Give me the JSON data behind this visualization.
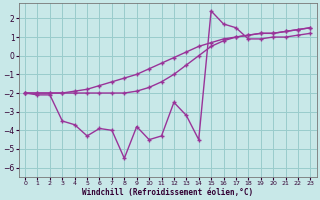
{
  "xlabel": "Windchill (Refroidissement éolien,°C)",
  "x_values": [
    0,
    1,
    2,
    3,
    4,
    5,
    6,
    7,
    8,
    9,
    10,
    11,
    12,
    13,
    14,
    15,
    16,
    17,
    18,
    19,
    20,
    21,
    22,
    23
  ],
  "line_zigzag": [
    -2.0,
    -2.1,
    -2.1,
    -3.5,
    -3.7,
    -4.3,
    -3.9,
    -4.0,
    -5.5,
    -3.8,
    -4.5,
    -4.3,
    -2.5,
    -3.2,
    -4.5,
    2.4,
    1.7,
    1.5,
    0.9,
    0.9,
    1.0,
    1.0,
    1.1,
    1.2
  ],
  "line_upper": [
    -2.0,
    -2.0,
    -2.0,
    -2.0,
    -1.9,
    -1.8,
    -1.6,
    -1.4,
    -1.2,
    -1.0,
    -0.7,
    -0.4,
    -0.1,
    0.2,
    0.5,
    0.7,
    0.9,
    1.0,
    1.1,
    1.2,
    1.2,
    1.3,
    1.4,
    1.5
  ],
  "line_lower": [
    -2.0,
    -2.0,
    -2.0,
    -2.0,
    -2.0,
    -2.0,
    -2.0,
    -2.0,
    -2.0,
    -1.9,
    -1.7,
    -1.4,
    -1.0,
    -0.5,
    0.0,
    0.5,
    0.8,
    1.0,
    1.1,
    1.2,
    1.2,
    1.3,
    1.4,
    1.5
  ],
  "ylim": [
    -6.5,
    2.8
  ],
  "xlim": [
    -0.5,
    23.5
  ],
  "yticks": [
    -6,
    -5,
    -4,
    -3,
    -2,
    -1,
    0,
    1,
    2
  ],
  "xticks": [
    0,
    1,
    2,
    3,
    4,
    5,
    6,
    7,
    8,
    9,
    10,
    11,
    12,
    13,
    14,
    15,
    16,
    17,
    18,
    19,
    20,
    21,
    22,
    23
  ],
  "line_color": "#993399",
  "bg_color": "#c8e8e8",
  "grid_color": "#99cccc",
  "linewidth": 1.0,
  "markersize": 3.5
}
